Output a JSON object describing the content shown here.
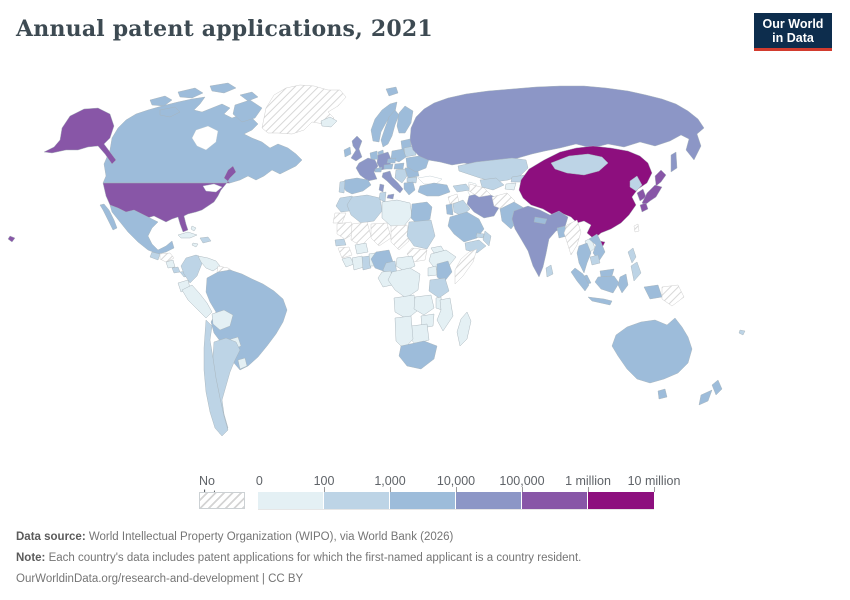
{
  "header": {
    "title": "Annual patent applications, 2021",
    "logo": {
      "line1": "Our World",
      "line2": "in Data"
    }
  },
  "brand": {
    "navy": "#0d2d4d",
    "red": "#d23b2e"
  },
  "legend": {
    "no_data_label": "No data"
  },
  "footer": {
    "data_source_label": "Data source:",
    "data_source_text": " World Intellectual Property Organization (WIPO), via World Bank (2026)",
    "note_label": "Note:",
    "note_text": " Each country's data includes patent applications for which the first-named applicant is a country resident.",
    "url": "OurWorldinData.org/research-and-development",
    "separator": " | ",
    "license": "CC BY"
  },
  "chart_data": {
    "type": "choropleth",
    "title": "Annual patent applications, 2021",
    "bin_edges": [
      "0",
      "100",
      "1,000",
      "10,000",
      "100,000",
      "1 million",
      "10 million"
    ],
    "bin_labels": [
      "0-100",
      "100-1,000",
      "1,000-10,000",
      "10,000-100,000",
      "100,000-1 million",
      "1 million-10 million"
    ],
    "bin_colors": [
      "#e4f0f4",
      "#bdd4e6",
      "#9dbcda",
      "#8c96c6",
      "#8856a7",
      "#8d0f7e"
    ],
    "no_data_label": "No data",
    "legend_position": "bottom",
    "countries": {
      "usa": 4,
      "canada": 2,
      "mexico": 2,
      "greenland": "no-data",
      "iceland": 0,
      "guatemala": 1,
      "honduras": "no-data",
      "nicaragua": 0,
      "costa_rica": 1,
      "panama": 1,
      "cuba": 0,
      "hispaniola": 1,
      "jamaica": 0,
      "bahamas": 0,
      "colombia": 1,
      "venezuela": 0,
      "guyana_suriname": "no-data",
      "ecuador": 0,
      "peru": 0,
      "brazil": 2,
      "bolivia": 0,
      "paraguay": 0,
      "chile": 1,
      "argentina": 1,
      "uruguay": 0,
      "uk": 3,
      "ireland": 2,
      "norway": 2,
      "sweden": 2,
      "finland": 2,
      "denmark": 2,
      "baltics": 2,
      "belarus": 1,
      "poland": 2,
      "germany": 3,
      "benelux": 2,
      "france": 3,
      "spain": 2,
      "portugal": 1,
      "switzerland": 2,
      "austria": 2,
      "czechia": 2,
      "hungary_slovakia": 2,
      "italy": 3,
      "balkans": 1,
      "romania": 2,
      "bulgaria": 1,
      "greece": 2,
      "ukraine": 2,
      "russia": 3,
      "turkey": 2,
      "caucasus": 1,
      "syria": "no-data",
      "iraq": 1,
      "israel_jordan": 2,
      "saudi": 2,
      "yemen": 1,
      "oman": 1,
      "uae": 1,
      "iran": 3,
      "kazakhstan": 1,
      "uzbekistan": 1,
      "turkmenistan": "no-data",
      "kyrgyzstan": 1,
      "tajikistan": 0,
      "afghanistan": "no-data",
      "pakistan": 2,
      "india": 3,
      "nepal": 2,
      "bangladesh": 2,
      "sri_lanka": 1,
      "myanmar": "no-data",
      "china": 5,
      "mongolia": 1,
      "north_korea": 1,
      "south_korea": 4,
      "japan": 4,
      "taiwan": "no-data",
      "vietnam": 2,
      "laos": 0,
      "thailand": 2,
      "cambodia": 1,
      "malaysia": 2,
      "philippines": 1,
      "indonesia": 2,
      "png": "no-data",
      "australia": 2,
      "nz": 2,
      "fiji": 1,
      "morocco": 1,
      "western_sahara": "no-data",
      "algeria": 1,
      "tunisia": 1,
      "libya": 0,
      "egypt": 2,
      "mauritania": "no-data",
      "mali": "no-data",
      "niger": "no-data",
      "chad": "no-data",
      "sudan": 1,
      "south_sudan": "no-data",
      "eritrea": 0,
      "ethiopia": 0,
      "somalia": "no-data",
      "senegal": 1,
      "guinea": "no-data",
      "sierra_liberia": 0,
      "ivory_coast": 0,
      "burkina": 0,
      "ghana": 1,
      "togo_benin": 0,
      "nigeria": 2,
      "cameroon": 1,
      "car": 0,
      "drc": 0,
      "congo_gabon": 0,
      "uganda": 0,
      "kenya": 2,
      "tanzania": 1,
      "angola": 0,
      "zambia": 0,
      "malawi": 0,
      "mozambique": 0,
      "zimbabwe": 0,
      "botswana": 0,
      "namibia": 0,
      "south_africa": 2,
      "madagascar": 0
    }
  }
}
